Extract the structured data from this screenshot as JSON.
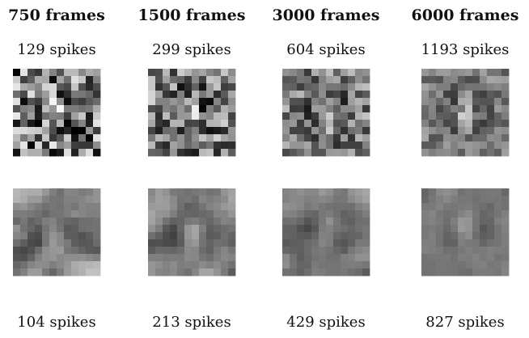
{
  "columns": [
    {
      "frames": "750 frames",
      "top_spikes": "129 spikes",
      "bottom_spikes": "104 spikes"
    },
    {
      "frames": "1500 frames",
      "top_spikes": "299 spikes",
      "bottom_spikes": "213 spikes"
    },
    {
      "frames": "3000 frames",
      "top_spikes": "604 spikes",
      "bottom_spikes": "429 spikes"
    },
    {
      "frames": "6000 frames",
      "top_spikes": "1193 spikes",
      "bottom_spikes": "827 spikes"
    }
  ]
}
